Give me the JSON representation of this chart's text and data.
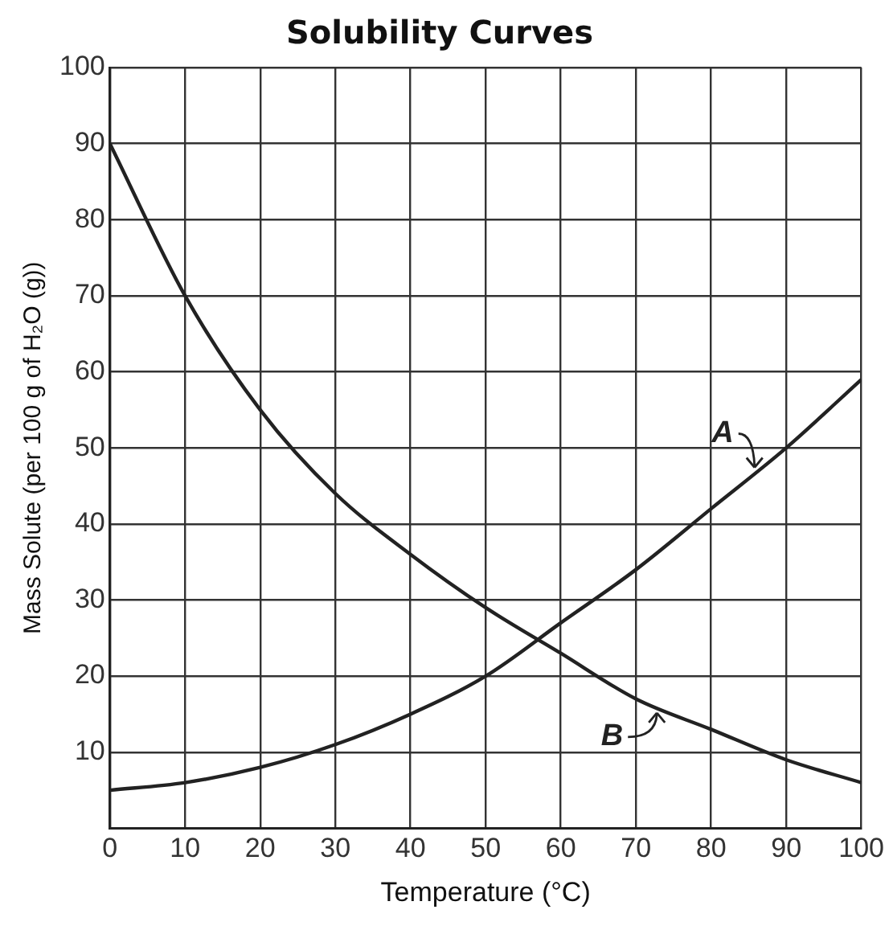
{
  "chart_data": {
    "type": "line",
    "title": "Solubility Curves",
    "xlabel": "Temperature (°C)",
    "ylabel": "Mass Solute (per 100 g of H₂O (g))",
    "x": [
      0,
      10,
      20,
      30,
      40,
      50,
      60,
      70,
      80,
      90,
      100
    ],
    "series": [
      {
        "name": "A",
        "color": "#222222",
        "values": [
          5,
          6,
          8,
          11,
          15,
          20,
          27,
          34,
          42,
          50,
          59
        ]
      },
      {
        "name": "B",
        "color": "#222222",
        "values": [
          90,
          70,
          55,
          44,
          36,
          29,
          23,
          17,
          13,
          9,
          6
        ]
      }
    ],
    "xlim": [
      0,
      100
    ],
    "xticks": [
      0,
      10,
      20,
      30,
      40,
      50,
      60,
      70,
      80,
      90,
      100
    ],
    "ylim": [
      0,
      100
    ],
    "yticks": [
      {
        "value": 0,
        "label": null
      },
      10,
      20,
      30,
      40,
      50,
      60,
      70,
      80,
      90,
      100
    ],
    "grid": true,
    "legend": "right",
    "marker": "none",
    "line_style": "solid"
  }
}
